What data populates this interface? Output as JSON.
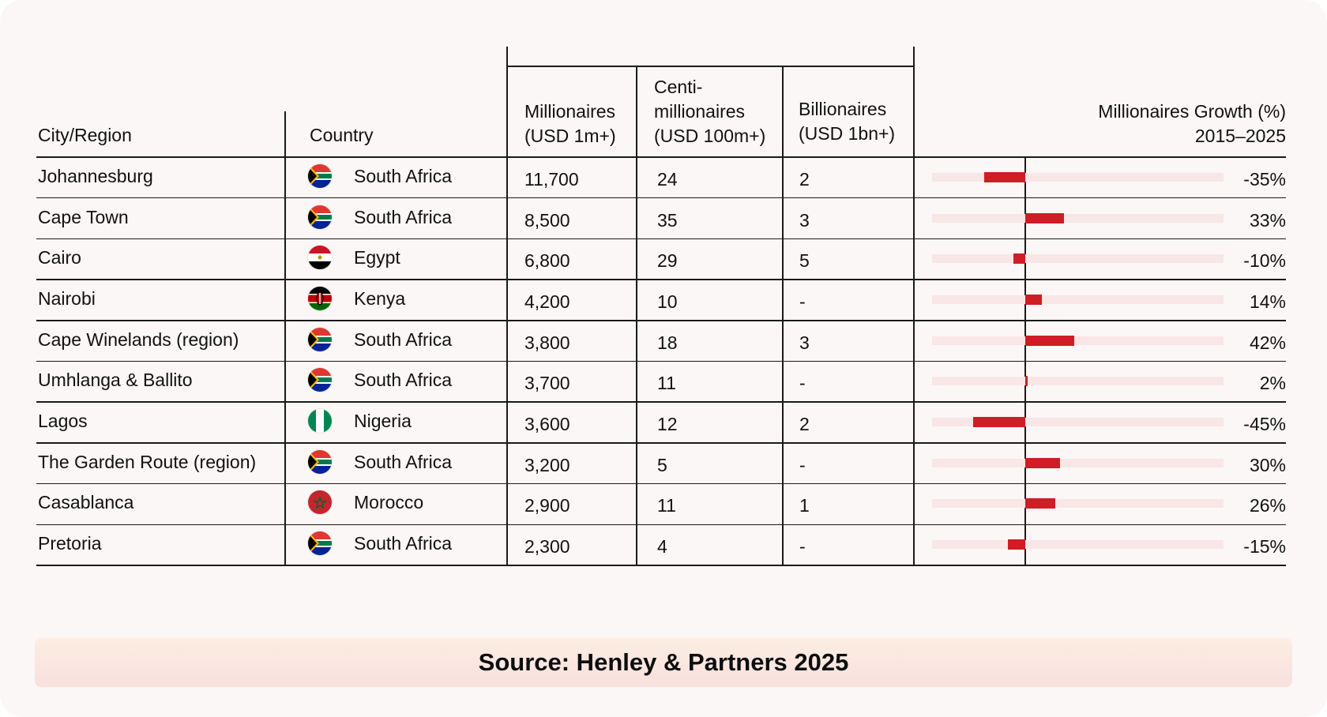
{
  "headers": {
    "city": "City/Region",
    "country": "Country",
    "millionaires": [
      "Millionaires",
      "(USD 1m+)"
    ],
    "centi": [
      "Centi-",
      "millionaires",
      "(USD 100m+)"
    ],
    "billionaires": [
      "Billionaires",
      "(USD 1bn+)"
    ],
    "growth": [
      "Millionaires Growth (%)",
      "2015–2025"
    ]
  },
  "source": "Source: Henley & Partners 2025",
  "colors": {
    "bar": "#d01c24",
    "track": "#f9e6e6",
    "background": "#fbf7f6"
  },
  "chart_data": {
    "type": "table",
    "growth_axis": {
      "min": -80,
      "max": 170,
      "unit": "%"
    },
    "columns": [
      "City/Region",
      "Country",
      "Millionaires (USD 1m+)",
      "Centi-millionaires (USD 100m+)",
      "Billionaires (USD 1bn+)",
      "Millionaires Growth (%) 2015–2025"
    ],
    "rows": [
      {
        "city": "Johannesburg",
        "country": "South Africa",
        "flag": "south-africa-flag-icon",
        "millionaires": "11,700",
        "centi": "24",
        "billionaires": "2",
        "growth": -35,
        "growth_label": "-35%"
      },
      {
        "city": "Cape Town",
        "country": "South Africa",
        "flag": "south-africa-flag-icon",
        "millionaires": "8,500",
        "centi": "35",
        "billionaires": "3",
        "growth": 33,
        "growth_label": "33%"
      },
      {
        "city": "Cairo",
        "country": "Egypt",
        "flag": "egypt-flag-icon",
        "millionaires": "6,800",
        "centi": "29",
        "billionaires": "5",
        "growth": -10,
        "growth_label": "-10%"
      },
      {
        "city": "Nairobi",
        "country": "Kenya",
        "flag": "kenya-flag-icon",
        "millionaires": "4,200",
        "centi": "10",
        "billionaires": "-",
        "growth": 14,
        "growth_label": "14%"
      },
      {
        "city": "Cape Winelands (region)",
        "country": "South Africa",
        "flag": "south-africa-flag-icon",
        "millionaires": "3,800",
        "centi": "18",
        "billionaires": "3",
        "growth": 42,
        "growth_label": "42%"
      },
      {
        "city": "Umhlanga & Ballito",
        "country": "South Africa",
        "flag": "south-africa-flag-icon",
        "millionaires": "3,700",
        "centi": "11",
        "billionaires": "-",
        "growth": 2,
        "growth_label": "2%"
      },
      {
        "city": "Lagos",
        "country": "Nigeria",
        "flag": "nigeria-flag-icon",
        "millionaires": "3,600",
        "centi": "12",
        "billionaires": "2",
        "growth": -45,
        "growth_label": "-45%"
      },
      {
        "city": "The Garden Route (region)",
        "country": "South Africa",
        "flag": "south-africa-flag-icon",
        "millionaires": "3,200",
        "centi": "5",
        "billionaires": "-",
        "growth": 30,
        "growth_label": "30%"
      },
      {
        "city": "Casablanca",
        "country": "Morocco",
        "flag": "morocco-flag-icon",
        "millionaires": "2,900",
        "centi": "11",
        "billionaires": "1",
        "growth": 26,
        "growth_label": "26%"
      },
      {
        "city": "Pretoria",
        "country": "South Africa",
        "flag": "south-africa-flag-icon",
        "millionaires": "2,300",
        "centi": "4",
        "billionaires": "-",
        "growth": -15,
        "growth_label": "-15%"
      }
    ]
  }
}
